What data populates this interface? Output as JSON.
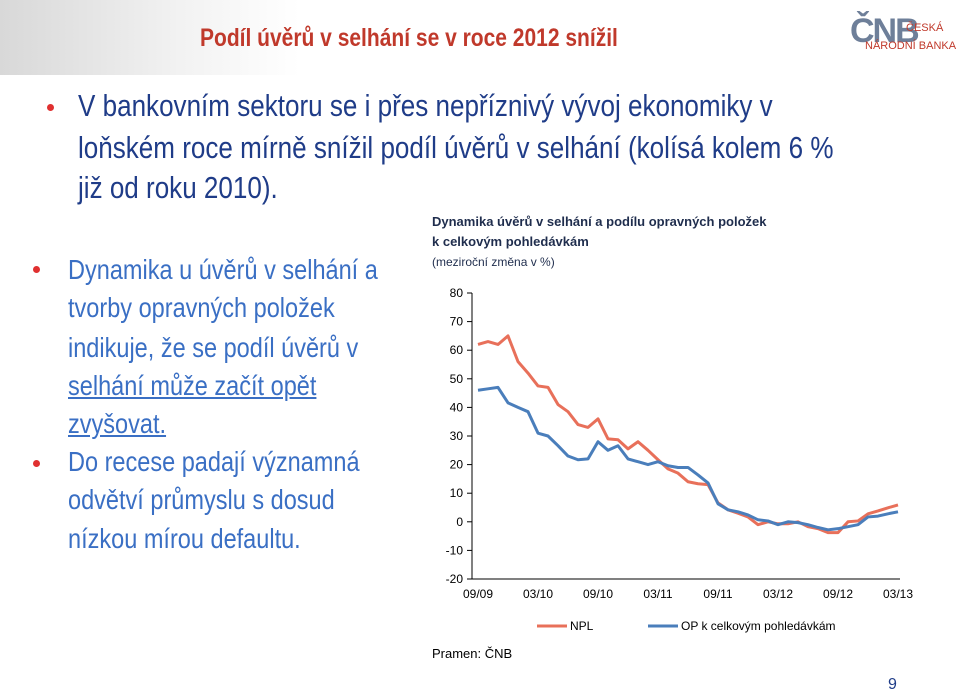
{
  "header": {
    "title": "Podíl úvěrů v selhání se v roce 2012 snížil",
    "logo": "ČNB",
    "logo_sub": [
      "ČESKÁ",
      "NÁRODNÍ BANKA"
    ]
  },
  "bullets": [
    {
      "lines": [
        "V bankovním sektoru se i přes nepříznivý vývoj ekonomiky v",
        "loňském roce mírně snížil podíl úvěrů v selhání (kolísá kolem 6 %",
        "již od roku 2010)."
      ]
    },
    {
      "lines": [
        "Dynamika u úvěrů v selhání a",
        "tvorby opravných položek",
        "indikuje, že se podíl úvěrů v",
        "selhání může začít opět",
        "zvyšovat."
      ]
    },
    {
      "lines": [
        "Do recese padají významná",
        "odvětví průmyslu s dosud",
        "nízkou mírou defaultu."
      ]
    }
  ],
  "chart_data": {
    "type": "line",
    "title": [
      "Dynamika úvěrů v selhání a podílu opravných položek",
      "k celkovým pohledávkám"
    ],
    "subtitle": "(meziroční změna v %)",
    "categories": [
      "09/09",
      null,
      null,
      null,
      null,
      null,
      "03/10",
      null,
      null,
      null,
      null,
      null,
      "09/10",
      null,
      null,
      null,
      null,
      null,
      "03/11",
      null,
      null,
      null,
      null,
      null,
      "09/11",
      null,
      null,
      null,
      null,
      null,
      "03/12",
      null,
      null,
      null,
      null,
      null,
      "09/12",
      null,
      null,
      null,
      null,
      null,
      "03/13"
    ],
    "series": [
      {
        "name": "NPL",
        "color": "#e8705a",
        "values": [
          62,
          63,
          62,
          65,
          56,
          52,
          47.5,
          47,
          41,
          38.5,
          34,
          33,
          36,
          29,
          28.7,
          25.5,
          28,
          25,
          21.7,
          18.5,
          17,
          14,
          13.3,
          13,
          6.6,
          4.2,
          3,
          1.7,
          -1,
          0,
          -0.7,
          -0.7,
          0,
          -1.7,
          -2.4,
          -3.8,
          -3.8,
          0,
          0.3,
          2.8,
          3.8,
          4.9,
          5.9
        ]
      },
      {
        "name": "OP k celkovým pohledávkám",
        "color": "#4a7ebb",
        "values": [
          46,
          46.5,
          47,
          41.6,
          40,
          38.5,
          31,
          30,
          26.6,
          23,
          21.7,
          22,
          28,
          25,
          26.6,
          22,
          21,
          20,
          21,
          19.6,
          19,
          19,
          16.4,
          13.6,
          6.3,
          4.2,
          3.5,
          2.4,
          0.7,
          0.3,
          -1,
          0,
          -0.3,
          -1,
          -2,
          -2.8,
          -2.4,
          -1.7,
          -1,
          1.7,
          2,
          2.8,
          3.5
        ]
      }
    ],
    "ylim": [
      -20,
      80
    ],
    "yticks": [
      -20,
      -10,
      0,
      10,
      20,
      30,
      40,
      50,
      60,
      70,
      80
    ],
    "source": "Pramen: ČNB"
  },
  "page_number": "9"
}
